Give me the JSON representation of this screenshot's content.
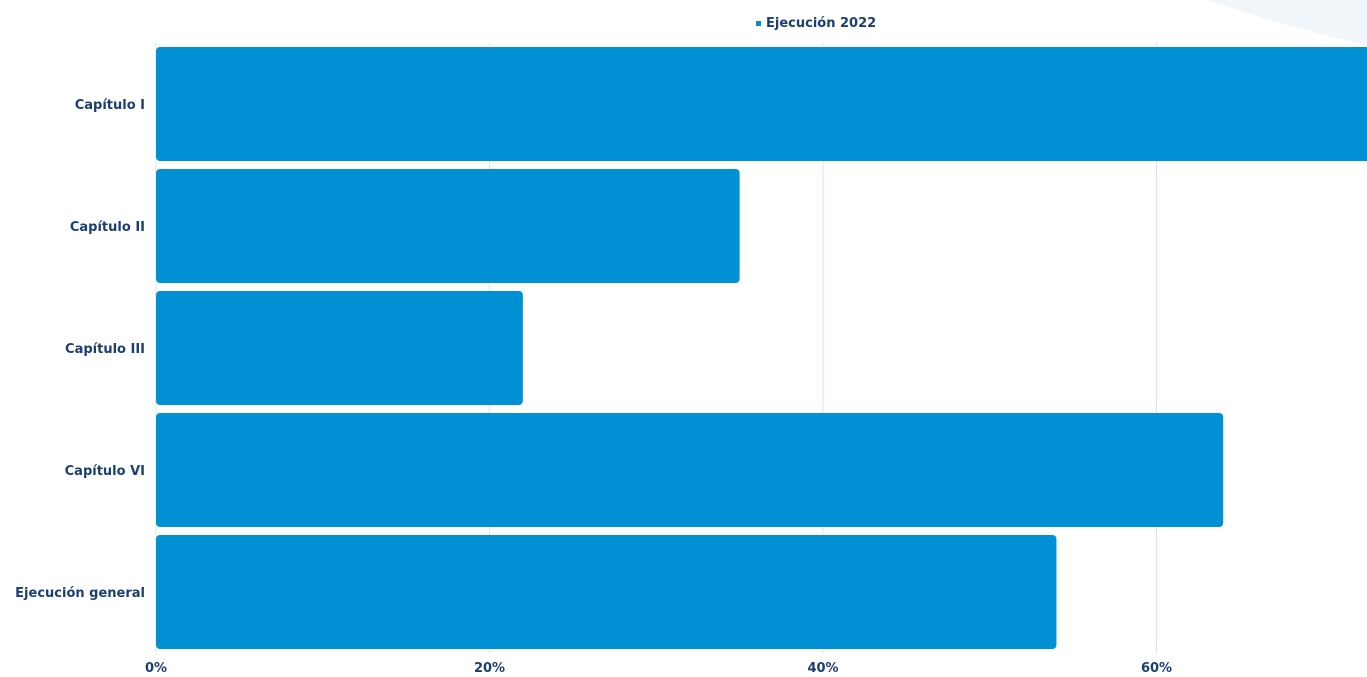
{
  "chart_data": {
    "type": "bar",
    "orientation": "horizontal",
    "categories": [
      "Capítulo I",
      "Capítulo II",
      "Capítulo III",
      "Capítulo VI",
      "Ejecución general"
    ],
    "series": [
      {
        "name": "Ejecución 2022",
        "values": [
          73,
          35,
          22,
          64,
          54
        ]
      }
    ],
    "xticks": [
      "0%",
      "20%",
      "40%",
      "60%"
    ],
    "xtick_values": [
      0,
      20,
      40,
      60
    ],
    "xlim": [
      0,
      73
    ],
    "grid": true,
    "legend_position": "top-center",
    "colors": {
      "bar": "#0190d4",
      "grid": "#d3e6ea",
      "text": "#1b3e73",
      "decor": "#f0f6f9"
    }
  }
}
